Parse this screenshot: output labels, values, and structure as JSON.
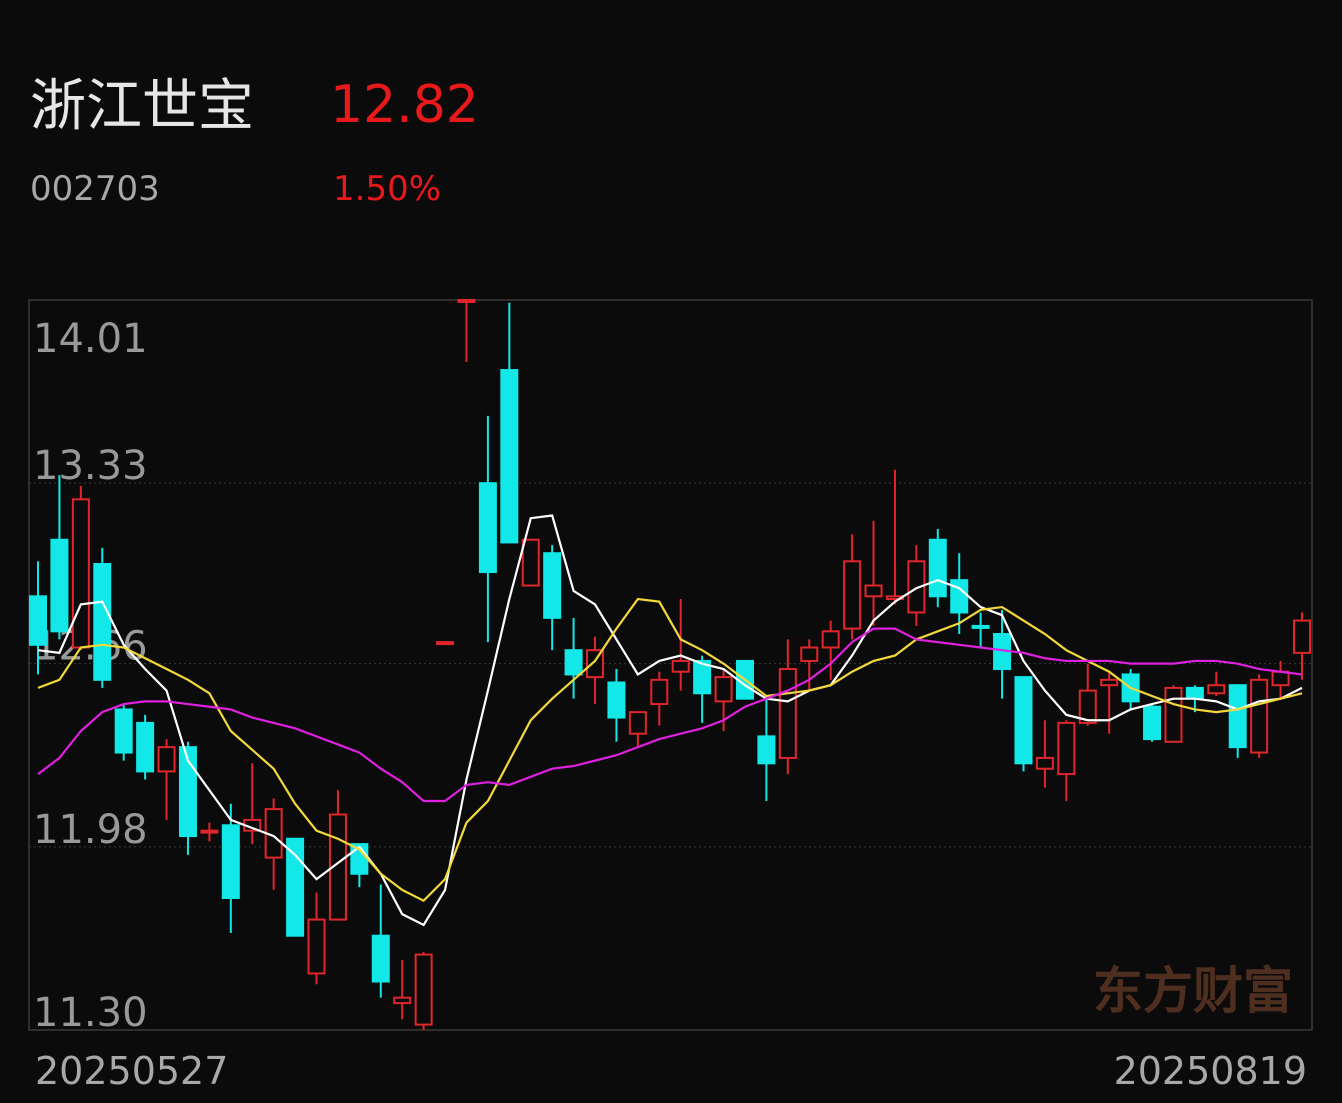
{
  "header": {
    "name": "浙江世宝",
    "price": "12.82",
    "code": "002703",
    "change": "1.50%"
  },
  "chart_data": {
    "type": "candlestick",
    "categories": [
      "20250527",
      null,
      null,
      null,
      null,
      null,
      null,
      null,
      null,
      null,
      null,
      null,
      null,
      null,
      null,
      null,
      null,
      null,
      null,
      null,
      null,
      null,
      null,
      null,
      null,
      null,
      null,
      null,
      null,
      null,
      null,
      null,
      null,
      null,
      null,
      null,
      null,
      null,
      null,
      null,
      null,
      null,
      null,
      null,
      null,
      null,
      null,
      null,
      null,
      null,
      null,
      null,
      null,
      null,
      null,
      null,
      null,
      null,
      null,
      "20250819"
    ],
    "open": [
      12.91,
      13.12,
      12.72,
      13.03,
      12.49,
      12.44,
      12.26,
      12.35,
      12.04,
      12.06,
      12.04,
      11.94,
      12.01,
      11.51,
      11.71,
      11.99,
      11.65,
      11.4,
      11.32,
      12.74,
      14.01,
      13.33,
      13.75,
      12.95,
      13.07,
      12.71,
      12.61,
      12.59,
      12.4,
      12.51,
      12.63,
      12.67,
      12.52,
      12.67,
      12.39,
      12.31,
      12.67,
      12.72,
      12.79,
      12.91,
      12.9,
      12.85,
      13.12,
      12.97,
      12.8,
      12.77,
      12.61,
      12.27,
      12.25,
      12.44,
      12.58,
      12.62,
      12.5,
      12.37,
      12.57,
      12.55,
      12.58,
      12.33,
      12.58,
      12.7
    ],
    "high": [
      13.04,
      13.36,
      13.32,
      13.09,
      12.51,
      12.47,
      12.38,
      12.37,
      12.07,
      12.14,
      12.29,
      12.16,
      12.01,
      11.81,
      12.19,
      11.99,
      11.84,
      11.56,
      11.59,
      12.74,
      14.01,
      13.58,
      14.0,
      13.12,
      13.1,
      12.83,
      12.76,
      12.64,
      12.48,
      12.63,
      12.9,
      12.69,
      12.64,
      12.67,
      12.53,
      12.75,
      12.75,
      12.82,
      13.14,
      13.19,
      13.38,
      13.1,
      13.16,
      13.07,
      12.85,
      12.86,
      12.61,
      12.45,
      12.45,
      12.66,
      12.63,
      12.64,
      12.51,
      12.58,
      12.58,
      12.63,
      12.58,
      12.62,
      12.67,
      12.85
    ],
    "low": [
      12.62,
      12.75,
      12.71,
      12.57,
      12.3,
      12.23,
      12.08,
      11.95,
      12.0,
      11.66,
      11.99,
      11.82,
      11.65,
      11.47,
      11.71,
      11.83,
      11.42,
      11.34,
      11.3,
      12.74,
      13.78,
      12.74,
      13.11,
      12.95,
      12.71,
      12.53,
      12.51,
      12.37,
      12.35,
      12.43,
      12.56,
      12.44,
      12.41,
      12.53,
      12.15,
      12.25,
      12.56,
      12.6,
      12.75,
      12.8,
      12.88,
      12.8,
      12.87,
      12.77,
      12.72,
      12.53,
      12.26,
      12.2,
      12.15,
      12.43,
      12.4,
      12.49,
      12.37,
      12.37,
      12.48,
      12.54,
      12.31,
      12.31,
      12.53,
      12.6
    ],
    "close": [
      12.73,
      12.78,
      13.27,
      12.6,
      12.33,
      12.26,
      12.35,
      12.02,
      12.04,
      11.79,
      12.08,
      12.12,
      11.65,
      11.71,
      12.1,
      11.88,
      11.48,
      11.42,
      11.58,
      12.74,
      14.01,
      13.0,
      13.11,
      13.12,
      12.83,
      12.62,
      12.71,
      12.46,
      12.48,
      12.6,
      12.67,
      12.55,
      12.61,
      12.53,
      12.29,
      12.64,
      12.72,
      12.78,
      13.04,
      12.95,
      12.91,
      13.04,
      12.91,
      12.85,
      12.8,
      12.64,
      12.29,
      12.31,
      12.44,
      12.56,
      12.6,
      12.52,
      12.38,
      12.57,
      12.53,
      12.58,
      12.35,
      12.6,
      12.63,
      12.82
    ],
    "up_color": "#e0262a",
    "down_color": "#13e8e8",
    "lines": [
      {
        "color": "#ffffff",
        "values": [
          12.71,
          12.7,
          12.88,
          12.89,
          12.73,
          12.64,
          12.56,
          12.3,
          12.19,
          12.08,
          12.05,
          12.02,
          11.95,
          11.86,
          11.92,
          11.98,
          11.88,
          11.73,
          11.69,
          11.82,
          12.23,
          12.56,
          12.9,
          13.2,
          13.21,
          12.93,
          12.88,
          12.75,
          12.62,
          12.67,
          12.69,
          12.66,
          12.64,
          12.58,
          12.53,
          12.52,
          12.56,
          12.58,
          12.69,
          12.82,
          12.89,
          12.94,
          12.97,
          12.94,
          12.87,
          12.84,
          12.67,
          12.56,
          12.47,
          12.45,
          12.45,
          12.49,
          12.51,
          12.53,
          12.53,
          12.52,
          12.49,
          12.52,
          12.53,
          12.57
        ]
      },
      {
        "color": "#f2d83a",
        "values": [
          12.57,
          12.6,
          12.72,
          12.73,
          12.72,
          12.68,
          12.64,
          12.6,
          12.55,
          12.41,
          12.34,
          12.27,
          12.14,
          12.04,
          12.01,
          11.97,
          11.88,
          11.82,
          11.78,
          11.86,
          12.07,
          12.15,
          12.3,
          12.45,
          12.53,
          12.6,
          12.67,
          12.79,
          12.9,
          12.89,
          12.75,
          12.71,
          12.66,
          12.6,
          12.54,
          12.55,
          12.56,
          12.58,
          12.63,
          12.67,
          12.69,
          12.75,
          12.78,
          12.81,
          12.86,
          12.87,
          12.82,
          12.77,
          12.71,
          12.67,
          12.63,
          12.57,
          12.54,
          12.51,
          12.49,
          12.48,
          12.49,
          12.51,
          12.53,
          12.55
        ]
      },
      {
        "color": "#e020e0",
        "values": [
          12.25,
          12.31,
          12.41,
          12.48,
          12.51,
          12.52,
          12.52,
          12.51,
          12.5,
          12.49,
          12.46,
          12.44,
          12.42,
          12.39,
          12.36,
          12.33,
          12.27,
          12.22,
          12.15,
          12.15,
          12.21,
          12.22,
          12.21,
          12.24,
          12.27,
          12.28,
          12.3,
          12.32,
          12.35,
          12.38,
          12.4,
          12.42,
          12.45,
          12.5,
          12.53,
          12.56,
          12.6,
          12.66,
          12.74,
          12.79,
          12.79,
          12.75,
          12.74,
          12.73,
          12.72,
          12.71,
          12.7,
          12.68,
          12.67,
          12.67,
          12.67,
          12.66,
          12.66,
          12.66,
          12.67,
          12.67,
          12.66,
          12.64,
          12.63,
          12.62
        ]
      }
    ],
    "ylim": [
      11.3,
      14.01
    ],
    "yticks": [
      14.01,
      13.33,
      12.66,
      11.98,
      {
        "value": 11.3,
        "label": "11.30"
      }
    ],
    "grid": true,
    "watermark": "东方财富"
  }
}
